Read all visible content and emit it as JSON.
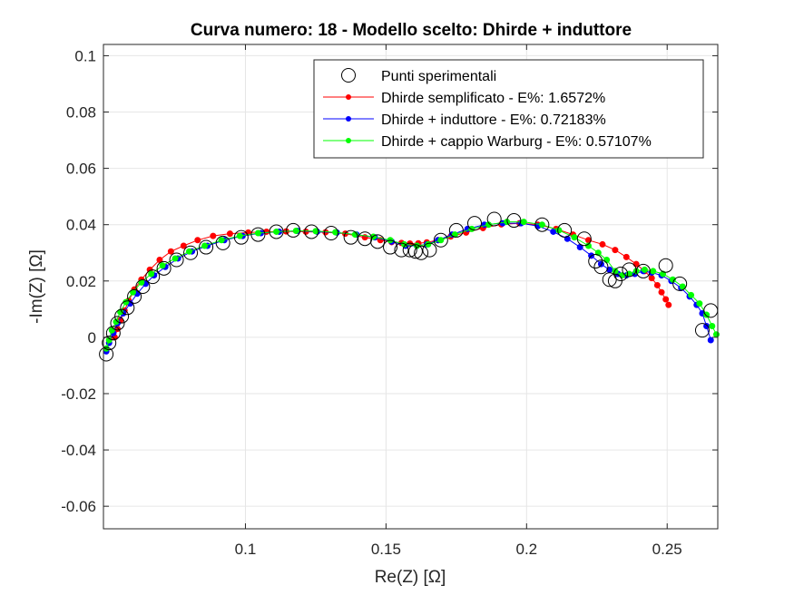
{
  "chart_data": {
    "type": "scatter",
    "title": "Curva numero: 18 - Modello scelto: Dhirde + induttore",
    "xlabel": "Re(Z) [Ω]",
    "ylabel": "-Im(Z) [Ω]",
    "xlim": [
      0.0495,
      0.268
    ],
    "ylim": [
      -0.068,
      0.104
    ],
    "xticks": [
      0.1,
      0.15,
      0.2,
      0.25
    ],
    "xtick_labels": [
      "0.1",
      "0.15",
      "0.2",
      "0.25"
    ],
    "yticks": [
      0.1,
      0.08,
      0.06,
      0.04,
      0.02,
      0,
      -0.02,
      -0.04,
      -0.06
    ],
    "ytick_labels": [
      "0.1",
      "0.08",
      "0.06",
      "0.04",
      "0.02",
      "0",
      "-0.02",
      "-0.04",
      "-0.06"
    ],
    "grid": true,
    "legend_position": "top-right",
    "series": [
      {
        "name": "Punti sperimentali",
        "style": "marker",
        "color": "#000000",
        "x": [
          0.0505,
          0.0515,
          0.053,
          0.0545,
          0.056,
          0.058,
          0.0605,
          0.0635,
          0.067,
          0.071,
          0.0755,
          0.0805,
          0.086,
          0.092,
          0.0985,
          0.1045,
          0.111,
          0.117,
          0.1235,
          0.1305,
          0.1375,
          0.1425,
          0.147,
          0.1515,
          0.1555,
          0.1585,
          0.1605,
          0.1625,
          0.1655,
          0.1695,
          0.175,
          0.1815,
          0.1885,
          0.1955,
          0.2055,
          0.2135,
          0.2205,
          0.2245,
          0.2265,
          0.2295,
          0.2315,
          0.2335,
          0.2365,
          0.2415,
          0.2495,
          0.2545,
          0.2625,
          0.2655
        ],
        "y": [
          -0.006,
          -0.002,
          0.0015,
          0.005,
          0.0075,
          0.0105,
          0.0145,
          0.018,
          0.0215,
          0.0245,
          0.0275,
          0.03,
          0.032,
          0.0335,
          0.0355,
          0.0365,
          0.0375,
          0.038,
          0.0375,
          0.037,
          0.0355,
          0.035,
          0.034,
          0.032,
          0.031,
          0.031,
          0.0305,
          0.03,
          0.031,
          0.0345,
          0.038,
          0.0405,
          0.042,
          0.0415,
          0.04,
          0.038,
          0.035,
          0.027,
          0.025,
          0.0205,
          0.02,
          0.0225,
          0.024,
          0.0235,
          0.0255,
          0.019,
          0.0025,
          0.0095
        ]
      },
      {
        "name": "Dhirde semplificato - E%: 1.6572%",
        "style": "line",
        "color": "#ff0000",
        "x": [
          0.0535,
          0.0545,
          0.0555,
          0.057,
          0.0585,
          0.0605,
          0.063,
          0.066,
          0.0695,
          0.0735,
          0.078,
          0.083,
          0.0885,
          0.0945,
          0.101,
          0.1075,
          0.1145,
          0.1215,
          0.1285,
          0.1355,
          0.1425,
          0.148,
          0.152,
          0.1555,
          0.1585,
          0.1615,
          0.1645,
          0.1685,
          0.173,
          0.1785,
          0.1845,
          0.191,
          0.1975,
          0.204,
          0.2105,
          0.2165,
          0.222,
          0.227,
          0.2315,
          0.2355,
          0.239,
          0.242,
          0.2445,
          0.2465,
          0.248,
          0.2495,
          0.2505
        ],
        "y": [
          0.0,
          0.003,
          0.006,
          0.0095,
          0.013,
          0.017,
          0.0205,
          0.024,
          0.0275,
          0.0305,
          0.0325,
          0.0345,
          0.036,
          0.0368,
          0.0372,
          0.0375,
          0.0376,
          0.0375,
          0.0373,
          0.0368,
          0.0355,
          0.0345,
          0.0338,
          0.0335,
          0.0333,
          0.0334,
          0.0337,
          0.0345,
          0.0358,
          0.0372,
          0.0388,
          0.0401,
          0.0405,
          0.04,
          0.0385,
          0.0365,
          0.0345,
          0.033,
          0.031,
          0.0285,
          0.026,
          0.0235,
          0.021,
          0.0185,
          0.016,
          0.0135,
          0.0115
        ]
      },
      {
        "name": "Dhirde + induttore - E%: 0.72183%",
        "style": "line",
        "color": "#0000ff",
        "x": [
          0.0505,
          0.0515,
          0.053,
          0.0545,
          0.0565,
          0.059,
          0.0615,
          0.0645,
          0.0675,
          0.0715,
          0.076,
          0.081,
          0.0865,
          0.0925,
          0.099,
          0.1055,
          0.112,
          0.1185,
          0.1255,
          0.1325,
          0.1395,
          0.146,
          0.152,
          0.157,
          0.161,
          0.1645,
          0.1685,
          0.1735,
          0.179,
          0.185,
          0.1915,
          0.198,
          0.204,
          0.2095,
          0.2145,
          0.219,
          0.223,
          0.2265,
          0.2295,
          0.2325,
          0.2355,
          0.2385,
          0.2415,
          0.2445,
          0.248,
          0.2515,
          0.255,
          0.258,
          0.2605,
          0.2625,
          0.264,
          0.2655
        ],
        "y": [
          -0.005,
          -0.002,
          0.0015,
          0.005,
          0.0085,
          0.012,
          0.0155,
          0.019,
          0.022,
          0.025,
          0.028,
          0.0305,
          0.0325,
          0.0345,
          0.036,
          0.037,
          0.0375,
          0.0378,
          0.0375,
          0.0372,
          0.0365,
          0.0355,
          0.034,
          0.0325,
          0.0325,
          0.033,
          0.0345,
          0.0365,
          0.0385,
          0.04,
          0.0405,
          0.0405,
          0.0395,
          0.0375,
          0.035,
          0.032,
          0.029,
          0.026,
          0.024,
          0.0225,
          0.022,
          0.0225,
          0.0235,
          0.023,
          0.022,
          0.02,
          0.0175,
          0.0145,
          0.0115,
          0.0085,
          0.004,
          -0.001
        ]
      },
      {
        "name": "Dhirde + cappio Warburg - E%: 0.57107%",
        "style": "line",
        "color": "#00ff00",
        "x": [
          0.0505,
          0.0515,
          0.0525,
          0.054,
          0.0555,
          0.0575,
          0.06,
          0.063,
          0.0665,
          0.0705,
          0.075,
          0.08,
          0.0855,
          0.0915,
          0.098,
          0.1045,
          0.111,
          0.118,
          0.125,
          0.132,
          0.139,
          0.1455,
          0.1515,
          0.1565,
          0.161,
          0.165,
          0.1695,
          0.1745,
          0.1805,
          0.1865,
          0.193,
          0.199,
          0.2055,
          0.2115,
          0.217,
          0.222,
          0.2255,
          0.2285,
          0.2315,
          0.234,
          0.2365,
          0.239,
          0.242,
          0.245,
          0.2485,
          0.252,
          0.2555,
          0.2585,
          0.2615,
          0.264,
          0.266,
          0.2675
        ],
        "y": [
          -0.004,
          -0.001,
          0.0025,
          0.0055,
          0.009,
          0.0125,
          0.016,
          0.0195,
          0.0225,
          0.0255,
          0.028,
          0.0305,
          0.0325,
          0.0345,
          0.036,
          0.037,
          0.0375,
          0.0378,
          0.0377,
          0.0373,
          0.0365,
          0.0357,
          0.0345,
          0.033,
          0.0325,
          0.033,
          0.0345,
          0.0365,
          0.0385,
          0.04,
          0.041,
          0.041,
          0.04,
          0.038,
          0.0355,
          0.0325,
          0.03,
          0.0275,
          0.0235,
          0.022,
          0.0225,
          0.0235,
          0.024,
          0.0235,
          0.0225,
          0.0205,
          0.018,
          0.015,
          0.012,
          0.008,
          0.004,
          0.001
        ]
      }
    ]
  }
}
